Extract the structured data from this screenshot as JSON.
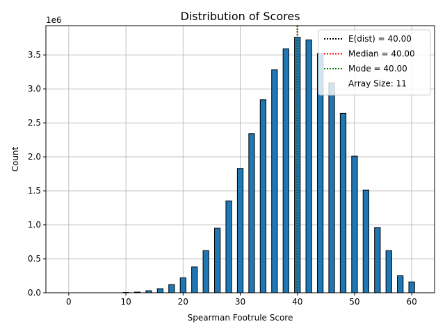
{
  "chart_data": {
    "type": "bar",
    "title": "Distribution of Scores",
    "xlabel": "Spearman Footrule Score",
    "ylabel": "Count",
    "y_scale_label": "1e6",
    "xlim": [
      -4,
      64
    ],
    "ylim": [
      0,
      3.93
    ],
    "x_ticks": [
      0,
      10,
      20,
      30,
      40,
      50,
      60
    ],
    "x_tick_labels": [
      "0",
      "10",
      "20",
      "30",
      "40",
      "50",
      "60"
    ],
    "y_ticks": [
      0,
      0.5,
      1.0,
      1.5,
      2.0,
      2.5,
      3.0,
      3.5
    ],
    "y_tick_labels": [
      "0.0",
      "0.5",
      "1.0",
      "1.5",
      "2.0",
      "2.5",
      "3.0",
      "3.5"
    ],
    "grid": true,
    "bar_color": "#1f77b4",
    "bar_edge_color": "#000000",
    "bar_width": 1.0,
    "x": [
      0,
      2,
      4,
      6,
      8,
      10,
      12,
      14,
      16,
      18,
      20,
      22,
      24,
      26,
      28,
      30,
      32,
      34,
      36,
      38,
      40,
      42,
      44,
      46,
      48,
      50,
      52,
      54,
      56,
      58,
      60
    ],
    "values": [
      0,
      0,
      0,
      0,
      0,
      0.005,
      0.01,
      0.03,
      0.06,
      0.12,
      0.22,
      0.38,
      0.62,
      0.95,
      1.35,
      1.83,
      2.34,
      2.84,
      3.28,
      3.59,
      3.76,
      3.72,
      3.52,
      3.09,
      2.64,
      2.01,
      1.51,
      0.96,
      0.62,
      0.25,
      0.16
    ],
    "vlines": [
      {
        "x": 40.0,
        "color": "#000000",
        "label": "E(dist) = 40.00"
      },
      {
        "x": 40.0,
        "color": "#ff0000",
        "label": "Median = 40.00"
      },
      {
        "x": 40.0,
        "color": "#008000",
        "label": "Mode = 40.00"
      }
    ],
    "legend": {
      "placement": "top-right",
      "entries": [
        {
          "label": "E(dist) = 40.00",
          "color": "#000000",
          "style": "dotted"
        },
        {
          "label": "Median = 40.00",
          "color": "#ff0000",
          "style": "dotted"
        },
        {
          "label": "Mode = 40.00",
          "color": "#008000",
          "style": "dotted"
        },
        {
          "label": "Array Size: 11",
          "color": "",
          "style": "none"
        }
      ]
    }
  }
}
